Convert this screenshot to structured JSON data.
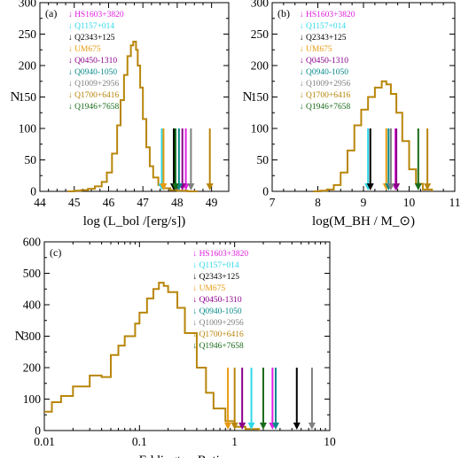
{
  "colors": {
    "histogram": "#B8860B",
    "frame": "#000000"
  },
  "quasars": [
    {
      "name": "HS1603+3820",
      "color": "#E020E0"
    },
    {
      "name": "Q1157+014",
      "color": "#30D8E8"
    },
    {
      "name": "Q2343+125",
      "color": "#000000"
    },
    {
      "name": "UM675",
      "color": "#E89A10"
    },
    {
      "name": "Q0450-1310",
      "color": "#8B008B"
    },
    {
      "name": "Q0940-1050",
      "color": "#0A8A8A"
    },
    {
      "name": "Q1009+2956",
      "color": "#808080"
    },
    {
      "name": "Q1700+6416",
      "color": "#B8860B"
    },
    {
      "name": "Q1946+7658",
      "color": "#1A6B1A"
    }
  ],
  "chart_data": [
    {
      "type": "histogram",
      "panel": "(a)",
      "xlabel": "log (L_bol /[erg/s])",
      "ylabel": "N",
      "xlim": [
        44,
        49.5
      ],
      "ylim": [
        0,
        300
      ],
      "xticks": [
        44,
        45,
        46,
        47,
        48,
        49
      ],
      "yticks": [
        0,
        50,
        100,
        150,
        200,
        250,
        300
      ],
      "log_x": false,
      "histogram": {
        "x": [
          44.8,
          45.0,
          45.2,
          45.4,
          45.6,
          45.8,
          45.95,
          46.1,
          46.25,
          46.35,
          46.45,
          46.55,
          46.65,
          46.72,
          46.8,
          46.85,
          46.92,
          47.0,
          47.1,
          47.2,
          47.3,
          47.45,
          47.6,
          47.8,
          48.0,
          48.3,
          48.6
        ],
        "y": [
          0,
          1,
          2,
          4,
          8,
          15,
          30,
          60,
          105,
          145,
          185,
          215,
          232,
          238,
          225,
          200,
          165,
          115,
          70,
          40,
          22,
          10,
          5,
          2,
          1,
          0,
          0
        ]
      },
      "markers": [
        {
          "name": "HS1603+3820",
          "x": 48.25
        },
        {
          "name": "Q1157+014",
          "x": 47.55
        },
        {
          "name": "Q2343+125",
          "x": 47.9
        },
        {
          "name": "UM675",
          "x": 47.6
        },
        {
          "name": "Q0450-1310",
          "x": 48.15
        },
        {
          "name": "Q0940-1050",
          "x": 48.05
        },
        {
          "name": "Q1009+2956",
          "x": 48.4
        },
        {
          "name": "Q1700+6416",
          "x": 48.95
        },
        {
          "name": "Q1946+7658",
          "x": 47.95
        }
      ]
    },
    {
      "type": "histogram",
      "panel": "(b)",
      "xlabel": "log(M_BH / M_⊙)",
      "ylabel": "N",
      "xlim": [
        7,
        11
      ],
      "ylim": [
        0,
        300
      ],
      "xticks": [
        7,
        8,
        9,
        10,
        11
      ],
      "yticks": [
        0,
        50,
        100,
        150,
        200,
        250,
        300
      ],
      "log_x": false,
      "histogram": {
        "x": [
          7.9,
          8.05,
          8.2,
          8.35,
          8.5,
          8.65,
          8.8,
          8.95,
          9.1,
          9.25,
          9.4,
          9.5,
          9.6,
          9.72,
          9.85,
          10.0,
          10.15,
          10.3,
          10.5
        ],
        "y": [
          0,
          1,
          3,
          10,
          30,
          65,
          105,
          130,
          150,
          165,
          175,
          170,
          155,
          125,
          80,
          35,
          12,
          3,
          0
        ]
      },
      "markers": [
        {
          "name": "HS1603+3820",
          "x": 9.7
        },
        {
          "name": "Q1157+014",
          "x": 9.1
        },
        {
          "name": "Q2343+125",
          "x": 9.15
        },
        {
          "name": "UM675",
          "x": 9.5
        },
        {
          "name": "Q0450-1310",
          "x": 9.72
        },
        {
          "name": "Q0940-1050",
          "x": 9.55
        },
        {
          "name": "Q1009+2956",
          "x": 9.6
        },
        {
          "name": "Q1700+6416",
          "x": 10.4
        },
        {
          "name": "Q1946+7658",
          "x": 10.2
        }
      ]
    },
    {
      "type": "histogram",
      "panel": "(c)",
      "xlabel": "Eddington Ratio  ε",
      "ylabel": "N",
      "xlim": [
        0.01,
        10
      ],
      "ylim": [
        0,
        600
      ],
      "xticks": [
        0.01,
        0.1,
        1,
        10
      ],
      "xtick_labels": [
        "0.01",
        "0.1",
        "1",
        "10"
      ],
      "yticks": [
        0,
        100,
        200,
        300,
        400,
        500,
        600
      ],
      "log_x": true,
      "histogram": {
        "x": [
          0.01,
          0.012,
          0.015,
          0.02,
          0.03,
          0.04,
          0.05,
          0.06,
          0.07,
          0.08,
          0.09,
          0.1,
          0.12,
          0.14,
          0.16,
          0.18,
          0.2,
          0.25,
          0.3,
          0.4,
          0.5,
          0.6,
          0.8,
          1.0,
          1.3,
          1.8
        ],
        "y": [
          60,
          90,
          110,
          140,
          175,
          170,
          240,
          270,
          300,
          300,
          340,
          375,
          420,
          450,
          470,
          460,
          440,
          390,
          310,
          200,
          120,
          70,
          30,
          12,
          5,
          0
        ]
      },
      "markers": [
        {
          "name": "HS1603+3820",
          "x": 2.5
        },
        {
          "name": "Q1157+014",
          "x": 1.5
        },
        {
          "name": "Q2343+125",
          "x": 4.5
        },
        {
          "name": "UM675",
          "x": 0.85
        },
        {
          "name": "Q0450-1310",
          "x": 1.2
        },
        {
          "name": "Q0940-1050",
          "x": 2.7
        },
        {
          "name": "Q1009+2956",
          "x": 6.5
        },
        {
          "name": "Q1700+6416",
          "x": 1.0
        },
        {
          "name": "Q1946+7658",
          "x": 2.0
        }
      ]
    }
  ]
}
